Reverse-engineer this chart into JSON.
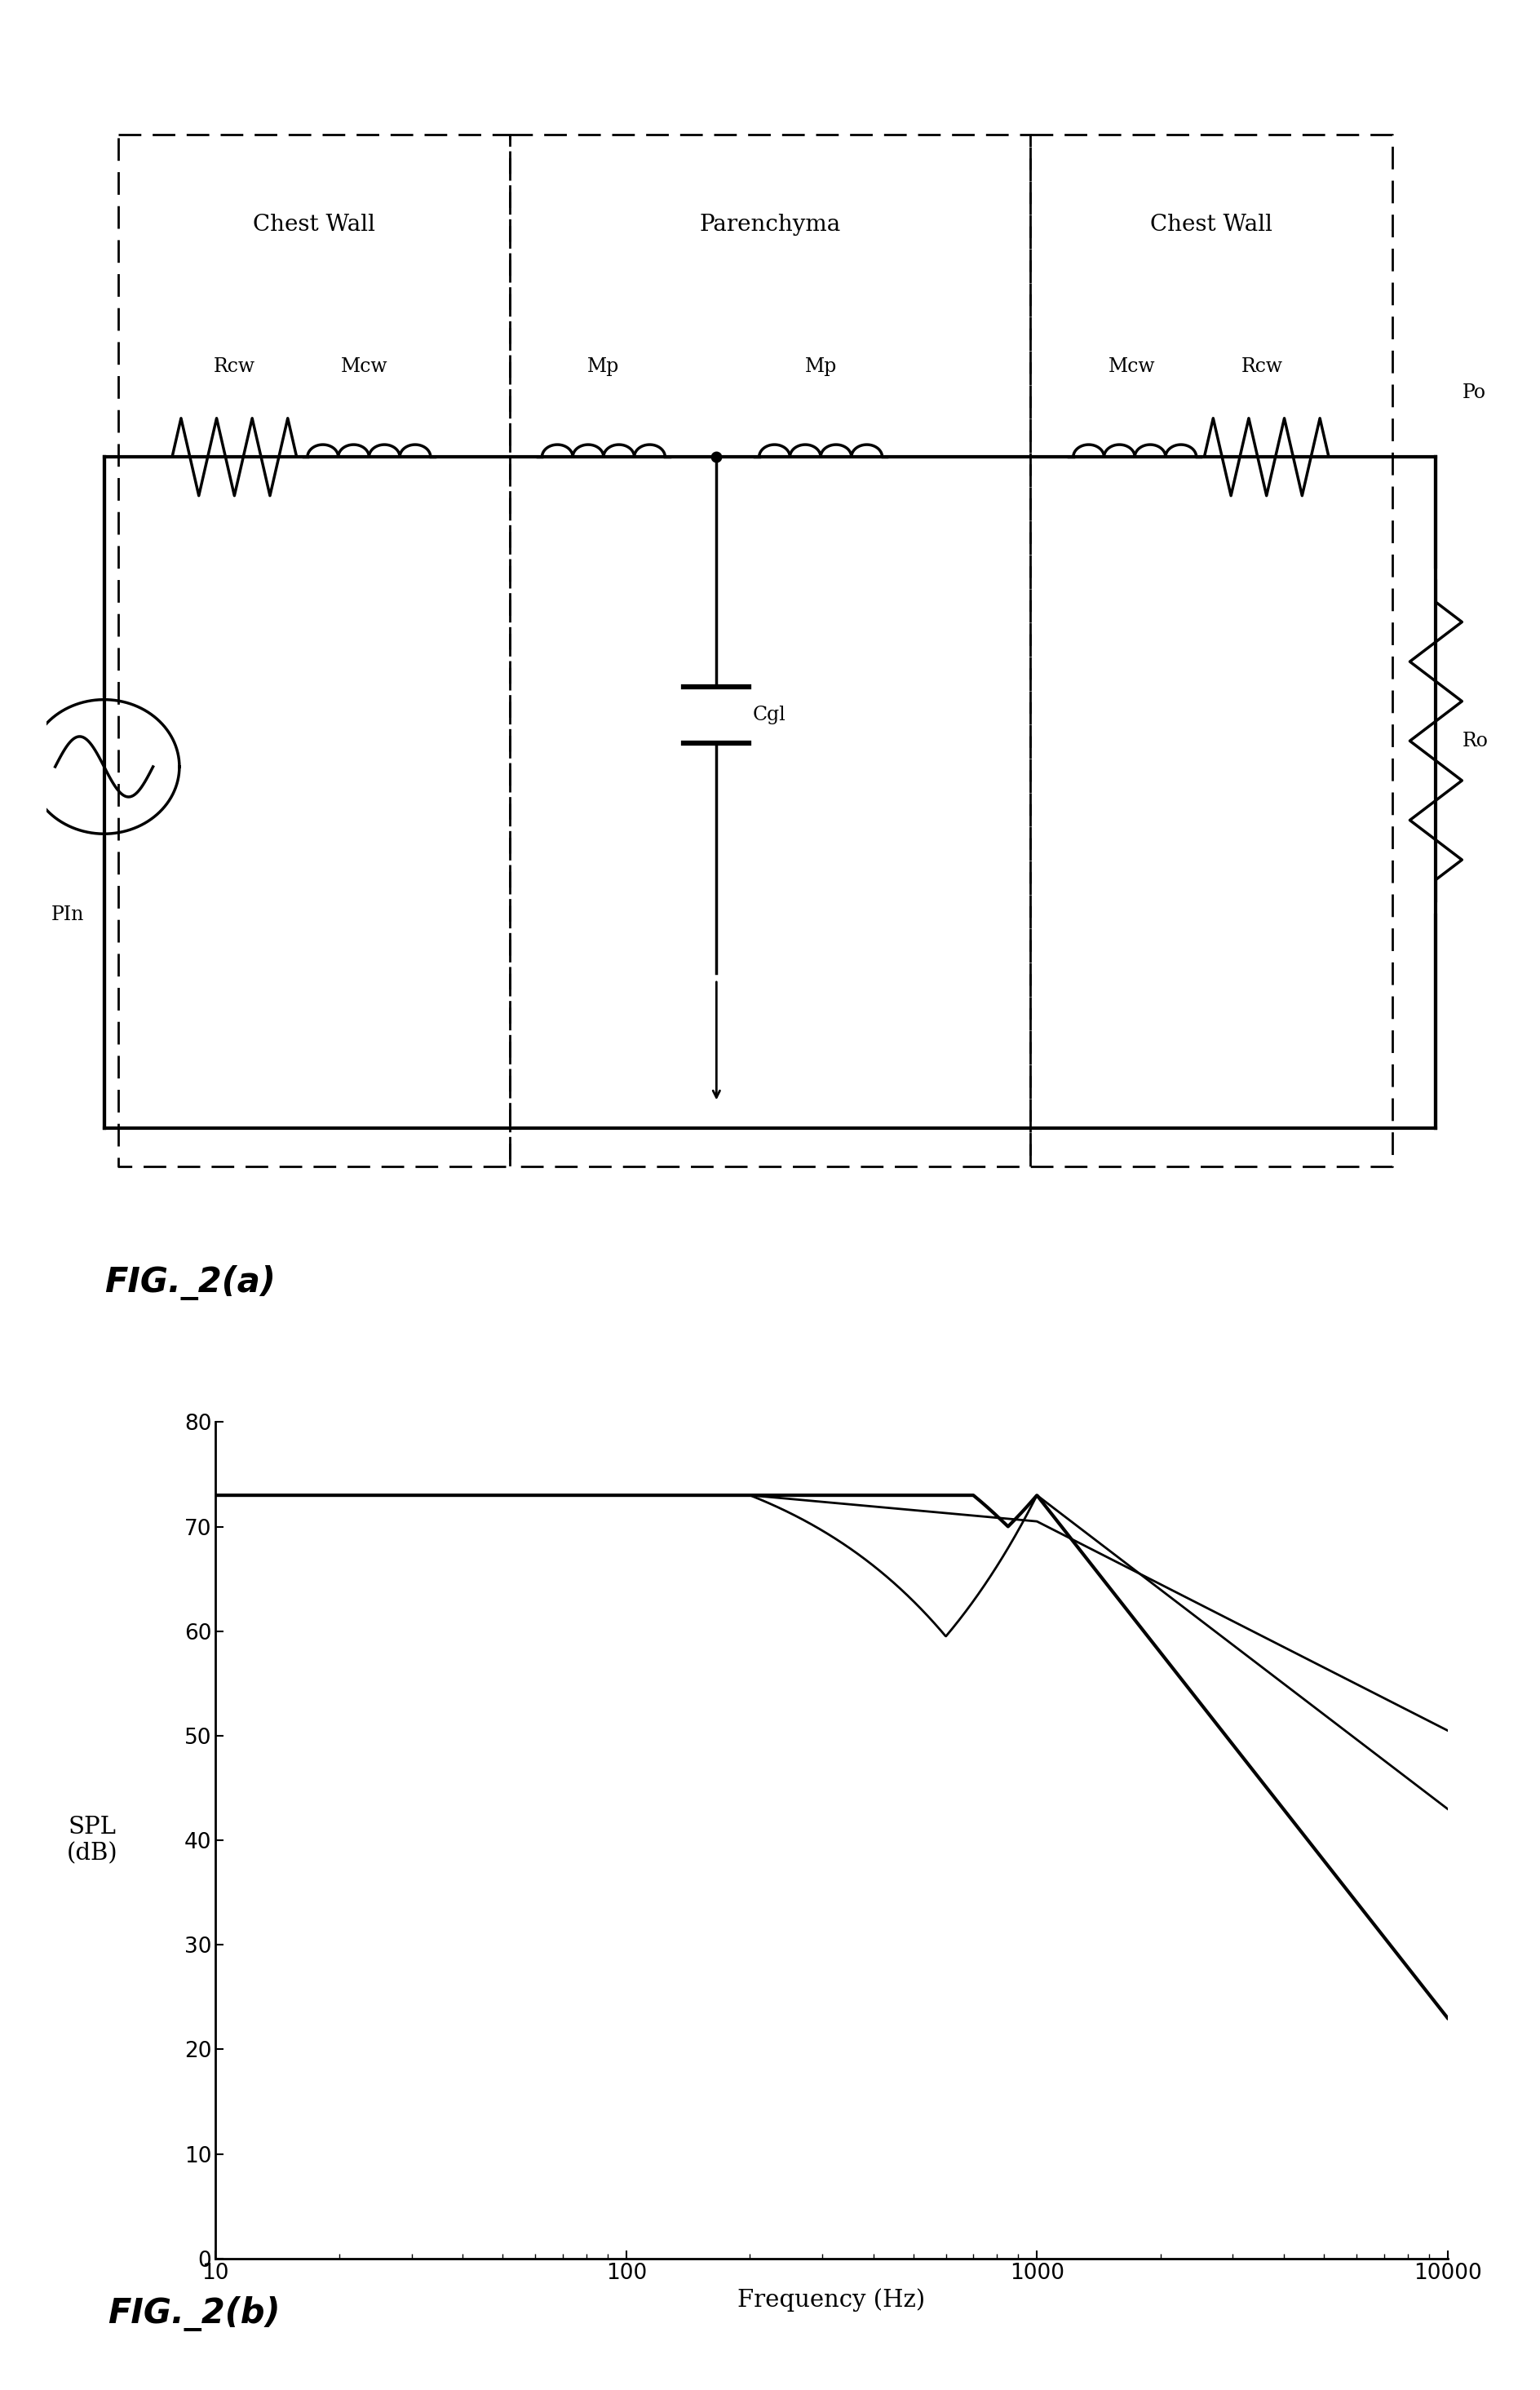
{
  "fig_width": 18.88,
  "fig_height": 29.3,
  "background_color": "#ffffff",
  "circuit_label": "FIG._2(a)",
  "graph_label": "FIG._2(b)",
  "graph": {
    "xlabel": "Frequency (Hz)",
    "ylabel": "SPL\n(dB)",
    "xlim": [
      10,
      10000
    ],
    "ylim": [
      0,
      80
    ],
    "yticks": [
      0,
      10,
      20,
      30,
      40,
      50,
      60,
      70,
      80
    ],
    "xticks": [
      10,
      100,
      1000,
      10000
    ],
    "xticklabels": [
      "10",
      "100",
      "1000",
      "10000"
    ]
  }
}
